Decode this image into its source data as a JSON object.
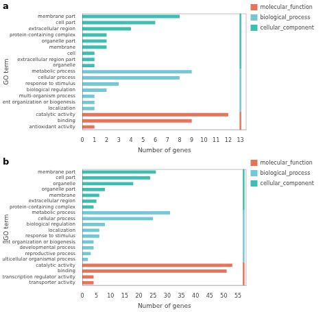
{
  "chart_data": [
    {
      "type": "bar",
      "orientation": "horizontal",
      "annotation": "a",
      "x_label": "Number of genes",
      "y_label": "GO term",
      "categories": [
        "antioxidant activity",
        "binding",
        "catalytic activity",
        "localization",
        "cellular component organization or biogenesis",
        "multi-organism process",
        "biological regulation",
        "response to stimulus",
        "cellular process",
        "metabolic process",
        "organelle",
        "extracellular region part",
        "cell",
        "membrane",
        "organelle part",
        "protein-containing complex",
        "extracellular region",
        "cell part",
        "membrane part"
      ],
      "series": [
        {
          "name": "molecular_function",
          "color": "#E8735A",
          "values": [
            1,
            9,
            12,
            null,
            null,
            null,
            null,
            null,
            null,
            null,
            null,
            null,
            null,
            null,
            null,
            null,
            null,
            null,
            null
          ]
        },
        {
          "name": "biological_process",
          "color": "#72C8D4",
          "values": [
            null,
            null,
            null,
            1,
            1,
            1,
            2,
            3,
            8,
            9,
            null,
            null,
            null,
            null,
            null,
            null,
            null,
            null,
            null
          ]
        },
        {
          "name": "cellular_component",
          "color": "#3DBFB0",
          "values": [
            null,
            null,
            null,
            null,
            null,
            null,
            null,
            null,
            null,
            null,
            1,
            1,
            1,
            2,
            2,
            2,
            4,
            6,
            8
          ]
        }
      ],
      "vline": 13,
      "xlim": [
        0,
        13.5
      ],
      "xticks": [
        0,
        1,
        2,
        3,
        4,
        5,
        6,
        7,
        8,
        9,
        10,
        11,
        12,
        13
      ],
      "grid": false,
      "legend": "right"
    },
    {
      "type": "bar",
      "orientation": "horizontal",
      "annotation": "b",
      "x_label": "Number of genes",
      "y_label": "GO term",
      "categories": [
        "transporter activity",
        "transcription regulator activity",
        "binding",
        "catalytic activity",
        "multicellular organismal process",
        "reproductive process",
        "developmental process",
        "cellular component organization or biogenesis",
        "response to stimulus",
        "localization",
        "biological regulation",
        "cellular process",
        "metabolic process",
        "protein-containing complex",
        "extracellular region",
        "membrane",
        "organelle part",
        "organelle",
        "cell part",
        "membrane part"
      ],
      "series": [
        {
          "name": "molecular_function",
          "color": "#E8735A",
          "values": [
            4,
            4,
            51,
            53,
            null,
            null,
            null,
            null,
            null,
            null,
            null,
            null,
            null,
            null,
            null,
            null,
            null,
            null,
            null,
            null
          ]
        },
        {
          "name": "biological_process",
          "color": "#72C8D4",
          "values": [
            null,
            null,
            null,
            null,
            2,
            3,
            4,
            4,
            6,
            6,
            8,
            25,
            31,
            null,
            null,
            null,
            null,
            null,
            null,
            null
          ]
        },
        {
          "name": "cellular_component",
          "color": "#3DBFB0",
          "values": [
            null,
            null,
            null,
            null,
            null,
            null,
            null,
            null,
            null,
            null,
            null,
            null,
            null,
            4,
            5,
            6,
            8,
            18,
            24,
            26
          ]
        }
      ],
      "vline": 57,
      "xlim": [
        0,
        58
      ],
      "xticks": [
        0,
        5,
        10,
        15,
        20,
        25,
        30,
        35,
        40,
        45,
        50,
        55
      ],
      "grid": false,
      "legend": "right"
    }
  ]
}
